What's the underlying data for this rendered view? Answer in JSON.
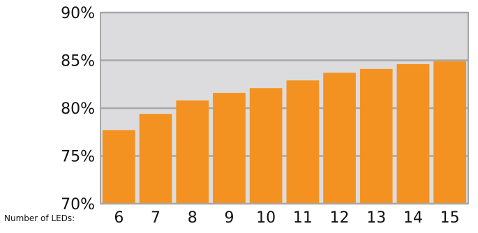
{
  "chart_data": {
    "type": "bar",
    "xlabel": "Number of LEDs:",
    "ylabel": "",
    "title": "",
    "categories": [
      "6",
      "7",
      "8",
      "9",
      "10",
      "11",
      "12",
      "13",
      "14",
      "15"
    ],
    "values": [
      77.7,
      79.4,
      80.8,
      81.6,
      82.1,
      82.9,
      83.7,
      84.1,
      84.6,
      84.9
    ],
    "ylim": [
      70,
      90
    ],
    "yticks": [
      70,
      75,
      80,
      85,
      90
    ],
    "ytick_labels": [
      "70%",
      "75%",
      "80%",
      "85%",
      "90%"
    ],
    "grid": true,
    "colors": {
      "bar": "#f39220",
      "plot_background": "#dcdcdf",
      "grid": "#a7a7a7",
      "frame": "#a7a7a7"
    }
  }
}
